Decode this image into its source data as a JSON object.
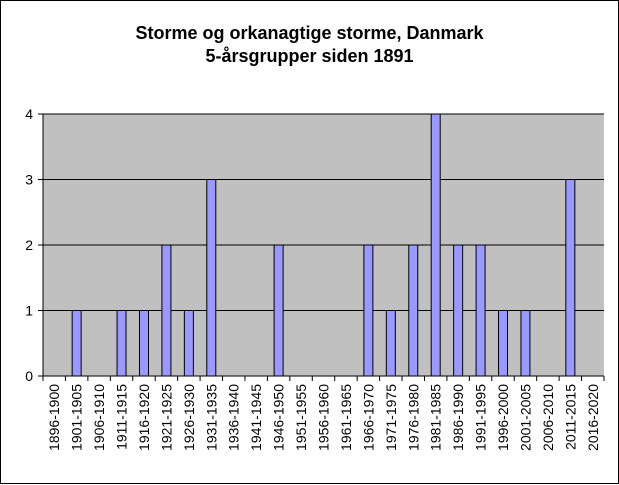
{
  "chart_data": {
    "type": "bar",
    "title": "Storme og orkanagtige storme, Danmark",
    "subtitle": "5-årsgrupper siden 1891",
    "xlabel": "",
    "ylabel": "",
    "categories": [
      "1896-1900",
      "1901-1905",
      "1906-1910",
      "1911-1915",
      "1916-1920",
      "1921-1925",
      "1926-1930",
      "1931-1935",
      "1936-1940",
      "1941-1945",
      "1946-1950",
      "1951-1955",
      "1956-1960",
      "1961-1965",
      "1966-1970",
      "1971-1975",
      "1976-1980",
      "1981-1985",
      "1986-1990",
      "1991-1995",
      "1996-2000",
      "2001-2005",
      "2006-2010",
      "2011-2015",
      "2016-2020"
    ],
    "values": [
      0,
      1,
      0,
      1,
      1,
      2,
      1,
      3,
      0,
      0,
      2,
      0,
      0,
      0,
      2,
      1,
      2,
      4,
      2,
      2,
      1,
      1,
      0,
      3,
      0
    ],
    "ylim": [
      0,
      4
    ],
    "yticks": [
      0,
      1,
      2,
      3,
      4
    ],
    "grid": true,
    "legend": "none",
    "colors": {
      "plot_background": "#c0c0c0",
      "bar_fill": "#9999ff",
      "bar_stroke": "#000000",
      "gridline": "#000000"
    }
  }
}
